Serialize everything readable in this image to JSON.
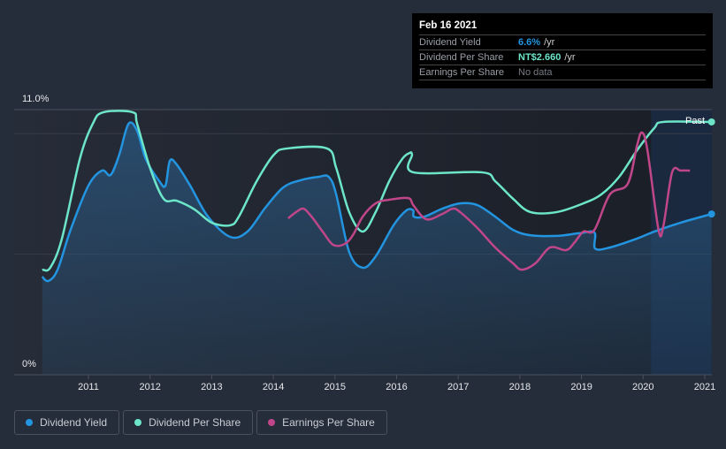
{
  "tooltip": {
    "date": "Feb 16 2021",
    "rows": [
      {
        "label": "Dividend Yield",
        "value": "6.6%",
        "unit": "/yr",
        "color": "#2394df"
      },
      {
        "label": "Dividend Per Share",
        "value": "NT$2.660",
        "unit": "/yr",
        "color": "#6ce5c8"
      },
      {
        "label": "Earnings Per Share",
        "value": "No data",
        "unit": "",
        "color": "#777b83"
      }
    ]
  },
  "legend": [
    {
      "label": "Dividend Yield",
      "color": "#2394df"
    },
    {
      "label": "Dividend Per Share",
      "color": "#6ce5c8"
    },
    {
      "label": "Earnings Per Share",
      "color": "#c0468a"
    }
  ],
  "chart_data": {
    "type": "line",
    "title": "",
    "xlabel": "",
    "ylabel": "",
    "ylim": [
      0,
      11
    ],
    "xlim": [
      2010.0,
      2021.11
    ],
    "y_tick_labels": [
      "0%",
      "11.0%"
    ],
    "x_tick_labels": [
      "2011",
      "2012",
      "2013",
      "2014",
      "2015",
      "2016",
      "2017",
      "2018",
      "2019",
      "2020",
      "2021"
    ],
    "x_ticks": [
      2011,
      2012,
      2013,
      2014,
      2015,
      2016,
      2017,
      2018,
      2019,
      2020,
      2021
    ],
    "gridlines_y": [
      5,
      10
    ],
    "past_label": "Past",
    "past_region_start": 2020.13,
    "series": [
      {
        "name": "Dividend Yield",
        "color": "#2394df",
        "filled": true,
        "end_dot": true,
        "points": [
          [
            2010.25,
            4.07
          ],
          [
            2010.35,
            3.89
          ],
          [
            2010.5,
            4.36
          ],
          [
            2010.71,
            6.01
          ],
          [
            2011.0,
            7.85
          ],
          [
            2011.22,
            8.47
          ],
          [
            2011.36,
            8.29
          ],
          [
            2011.5,
            9.13
          ],
          [
            2011.65,
            10.41
          ],
          [
            2011.79,
            10.12
          ],
          [
            2011.93,
            8.95
          ],
          [
            2012.15,
            8.03
          ],
          [
            2012.25,
            7.85
          ],
          [
            2012.32,
            8.87
          ],
          [
            2012.43,
            8.73
          ],
          [
            2012.65,
            7.85
          ],
          [
            2012.94,
            6.56
          ],
          [
            2013.3,
            5.72
          ],
          [
            2013.58,
            5.94
          ],
          [
            2013.87,
            6.93
          ],
          [
            2014.16,
            7.77
          ],
          [
            2014.44,
            8.07
          ],
          [
            2014.73,
            8.21
          ],
          [
            2014.9,
            8.21
          ],
          [
            2015.02,
            7.48
          ],
          [
            2015.23,
            5.1
          ],
          [
            2015.45,
            4.44
          ],
          [
            2015.66,
            4.91
          ],
          [
            2015.95,
            6.2
          ],
          [
            2016.16,
            6.82
          ],
          [
            2016.27,
            6.82
          ],
          [
            2016.28,
            6.56
          ],
          [
            2016.45,
            6.56
          ],
          [
            2016.74,
            6.89
          ],
          [
            2017.03,
            7.11
          ],
          [
            2017.31,
            7.04
          ],
          [
            2017.6,
            6.56
          ],
          [
            2017.89,
            6.01
          ],
          [
            2018.17,
            5.79
          ],
          [
            2018.6,
            5.76
          ],
          [
            2018.96,
            5.87
          ],
          [
            2019.21,
            5.9
          ],
          [
            2019.22,
            5.24
          ],
          [
            2019.46,
            5.28
          ],
          [
            2019.9,
            5.65
          ],
          [
            2020.18,
            5.94
          ],
          [
            2020.61,
            6.31
          ],
          [
            2021.11,
            6.67
          ]
        ]
      },
      {
        "name": "Dividend Per Share",
        "color": "#6ce5c8",
        "filled": false,
        "end_dot": true,
        "points": [
          [
            2010.25,
            4.36
          ],
          [
            2010.38,
            4.44
          ],
          [
            2010.57,
            5.65
          ],
          [
            2010.86,
            8.95
          ],
          [
            2011.07,
            10.41
          ],
          [
            2011.24,
            10.89
          ],
          [
            2011.72,
            10.89
          ],
          [
            2011.79,
            10.41
          ],
          [
            2012.0,
            8.58
          ],
          [
            2012.22,
            7.3
          ],
          [
            2012.43,
            7.22
          ],
          [
            2012.72,
            6.86
          ],
          [
            2013.0,
            6.31
          ],
          [
            2013.3,
            6.2
          ],
          [
            2013.44,
            6.56
          ],
          [
            2013.73,
            8.03
          ],
          [
            2014.01,
            9.13
          ],
          [
            2014.23,
            9.39
          ],
          [
            2014.87,
            9.39
          ],
          [
            2015.02,
            8.58
          ],
          [
            2015.23,
            6.75
          ],
          [
            2015.45,
            5.94
          ],
          [
            2015.66,
            6.75
          ],
          [
            2015.88,
            8.03
          ],
          [
            2016.09,
            8.95
          ],
          [
            2016.21,
            9.2
          ],
          [
            2016.25,
            9.13
          ],
          [
            2016.27,
            8.4
          ],
          [
            2017.38,
            8.4
          ],
          [
            2017.6,
            8.03
          ],
          [
            2017.89,
            7.3
          ],
          [
            2018.17,
            6.75
          ],
          [
            2018.6,
            6.75
          ],
          [
            2019.03,
            7.11
          ],
          [
            2019.32,
            7.48
          ],
          [
            2019.61,
            8.21
          ],
          [
            2019.9,
            9.31
          ],
          [
            2020.18,
            10.23
          ],
          [
            2020.33,
            10.49
          ],
          [
            2021.11,
            10.49
          ]
        ]
      },
      {
        "name": "Earnings Per Share",
        "color": "#c0468a",
        "filled": false,
        "end_dot": false,
        "points": [
          [
            2014.24,
            6.49
          ],
          [
            2014.37,
            6.75
          ],
          [
            2014.49,
            6.89
          ],
          [
            2014.62,
            6.56
          ],
          [
            2014.8,
            5.94
          ],
          [
            2014.97,
            5.39
          ],
          [
            2015.16,
            5.43
          ],
          [
            2015.3,
            5.83
          ],
          [
            2015.45,
            6.56
          ],
          [
            2015.66,
            7.11
          ],
          [
            2015.88,
            7.26
          ],
          [
            2016.19,
            7.33
          ],
          [
            2016.27,
            7.04
          ],
          [
            2016.48,
            6.45
          ],
          [
            2016.74,
            6.67
          ],
          [
            2016.91,
            6.89
          ],
          [
            2017.03,
            6.75
          ],
          [
            2017.31,
            6.09
          ],
          [
            2017.6,
            5.28
          ],
          [
            2017.89,
            4.62
          ],
          [
            2018.03,
            4.36
          ],
          [
            2018.25,
            4.62
          ],
          [
            2018.49,
            5.28
          ],
          [
            2018.75,
            5.17
          ],
          [
            2018.89,
            5.5
          ],
          [
            2019.03,
            5.94
          ],
          [
            2019.21,
            6.01
          ],
          [
            2019.46,
            7.48
          ],
          [
            2019.75,
            7.92
          ],
          [
            2019.9,
            9.5
          ],
          [
            2019.98,
            10.05
          ],
          [
            2020.07,
            9.31
          ],
          [
            2020.25,
            6.01
          ],
          [
            2020.33,
            6.2
          ],
          [
            2020.47,
            8.4
          ],
          [
            2020.61,
            8.47
          ],
          [
            2020.76,
            8.47
          ]
        ]
      }
    ]
  }
}
